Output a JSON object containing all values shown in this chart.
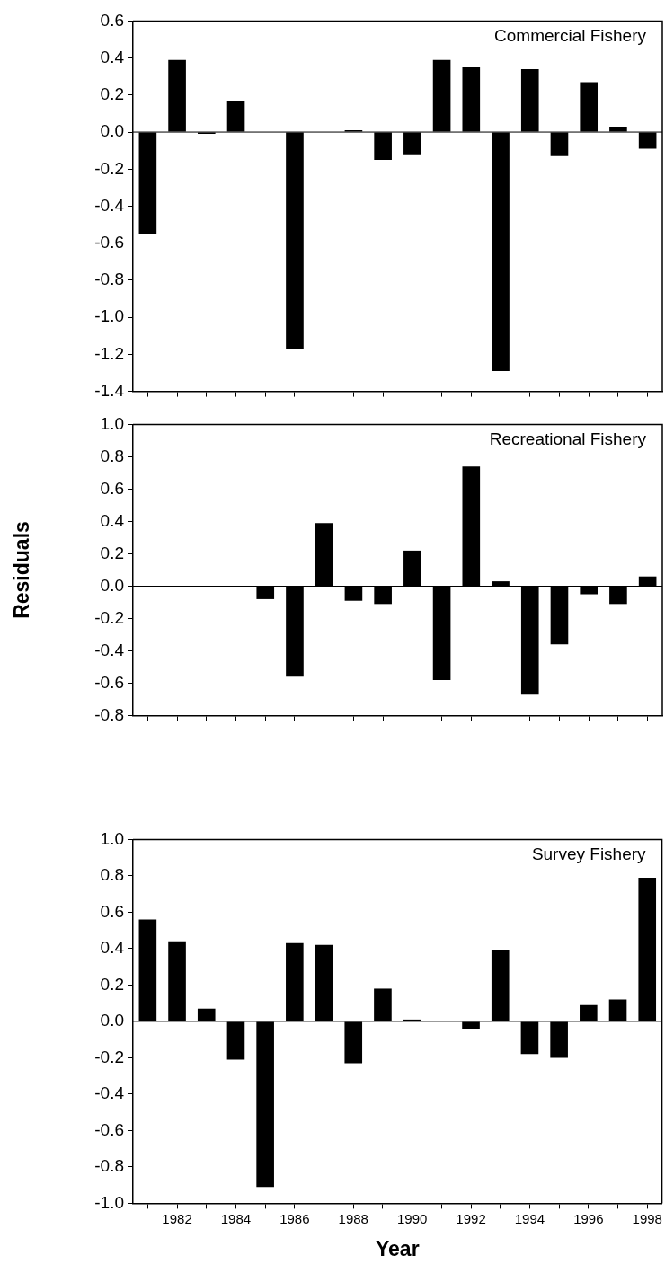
{
  "chart_data": [
    {
      "type": "bar",
      "annotations": [
        "Commercial Fishery"
      ],
      "categories": [
        null,
        "1982",
        null,
        "1984",
        null,
        "1986",
        null,
        "1988",
        null,
        "1990",
        null,
        "1992",
        null,
        "1994",
        null,
        "1996",
        null,
        "1998"
      ],
      "series": [
        {
          "color": "#000000",
          "values": [
            -0.55,
            0.39,
            -0.01,
            0.17,
            null,
            -1.17,
            null,
            0.01,
            -0.15,
            -0.12,
            0.39,
            0.35,
            -1.29,
            0.34,
            -0.13,
            0.27,
            0.03,
            -0.09
          ]
        }
      ],
      "ylim": [
        -1.4,
        0.6
      ],
      "yticks": [
        -1.4,
        -1.2,
        {
          "value": -1,
          "label": "-1.0"
        },
        -0.8,
        -0.6,
        -0.4,
        -0.2,
        {
          "value": 0,
          "label": "0.0"
        },
        0.2,
        0.4,
        0.6
      ],
      "grid": false,
      "ref_lines": [
        {
          "axis": "y",
          "value": 0
        }
      ],
      "legend": false,
      "tick_labels": "y"
    },
    {
      "type": "bar",
      "annotations": [
        "Recreational Fishery"
      ],
      "ylabel": "Residuals",
      "categories": [
        null,
        "1982",
        null,
        "1984",
        null,
        "1986",
        null,
        "1988",
        null,
        "1990",
        null,
        "1992",
        null,
        "1994",
        null,
        "1996",
        null,
        "1998"
      ],
      "series": [
        {
          "color": "#000000",
          "values": [
            null,
            null,
            null,
            null,
            -0.08,
            -0.56,
            0.39,
            -0.09,
            -0.11,
            0.22,
            -0.58,
            0.74,
            0.03,
            -0.67,
            -0.36,
            -0.05,
            -0.11,
            0.06
          ]
        }
      ],
      "ylim": [
        -0.8,
        1.0
      ],
      "yticks": [
        -0.8,
        -0.6,
        -0.4,
        -0.2,
        {
          "value": 0,
          "label": "0.0"
        },
        0.2,
        0.4,
        0.6,
        0.8,
        {
          "value": 1,
          "label": "1.0"
        }
      ],
      "grid": false,
      "ref_lines": [
        {
          "axis": "y",
          "value": 0
        }
      ],
      "legend": false,
      "tick_labels": "y"
    },
    {
      "type": "bar",
      "annotations": [
        "Survey Fishery"
      ],
      "xlabel": "Year",
      "categories": [
        null,
        "1982",
        null,
        "1984",
        null,
        "1986",
        null,
        "1988",
        null,
        "1990",
        null,
        "1992",
        null,
        "1994",
        null,
        "1996",
        null,
        "1998"
      ],
      "series": [
        {
          "color": "#000000",
          "values": [
            0.56,
            0.44,
            0.07,
            -0.21,
            -0.91,
            0.43,
            0.42,
            -0.23,
            0.18,
            0.01,
            null,
            -0.04,
            0.39,
            -0.18,
            -0.2,
            0.09,
            0.12,
            0.79
          ]
        }
      ],
      "ylim": [
        -1.0,
        1.0
      ],
      "yticks": [
        {
          "value": -1,
          "label": "-1.0"
        },
        -0.8,
        -0.6,
        -0.4,
        -0.2,
        {
          "value": 0,
          "label": "0.0"
        },
        0.2,
        0.4,
        0.6,
        0.8,
        {
          "value": 1,
          "label": "1.0"
        }
      ],
      "grid": false,
      "ref_lines": [
        {
          "axis": "y",
          "value": 0
        }
      ],
      "legend": false
    }
  ]
}
